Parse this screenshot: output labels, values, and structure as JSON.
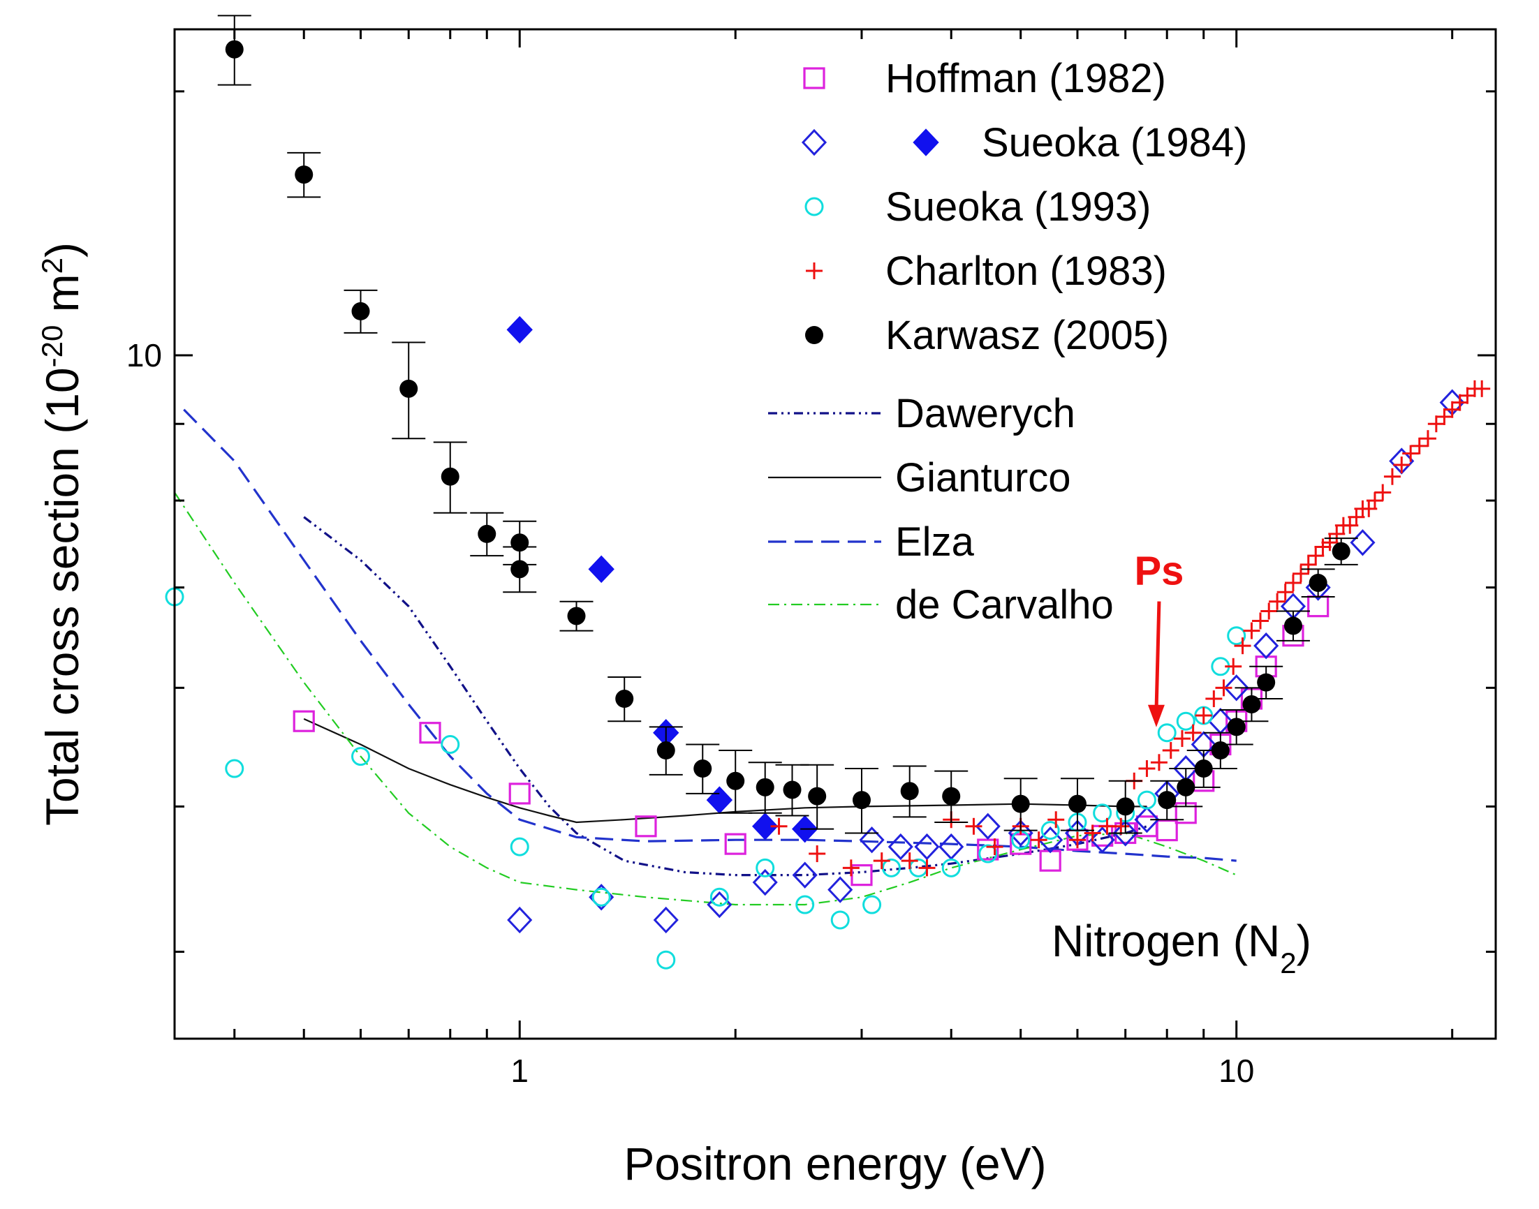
{
  "chart_data": {
    "type": "scatter",
    "title": "",
    "xlabel": "Positron energy (eV)",
    "ylabel": {
      "main": "Total cross section (10",
      "exp": "-20",
      "unit": " m",
      "unit_exp": "2",
      "close": ")"
    },
    "xscale": "log",
    "yscale": "log",
    "xlim": [
      0.33,
      23
    ],
    "ylim": [
      3.5,
      16.5
    ],
    "x_tick_labels": [
      {
        "value": 1,
        "label": "1"
      },
      {
        "value": 10,
        "label": "10"
      }
    ],
    "y_tick_labels": [
      {
        "value": 10,
        "label": "10"
      }
    ],
    "x_ticks_minor": [
      0.4,
      0.5,
      0.6,
      0.7,
      0.8,
      0.9,
      2,
      3,
      4,
      5,
      6,
      7,
      8,
      9,
      20
    ],
    "y_ticks_minor": [
      4,
      5,
      6,
      7,
      8,
      9,
      15
    ],
    "grid": false,
    "legend_position": "top-right",
    "annotation": {
      "text": "Nitrogen (N",
      "sub": "2",
      "close": ")"
    },
    "ps_marker": {
      "label": "Ps",
      "x": 7.8,
      "y_from": 7.0,
      "y_to": 5.6,
      "color": "#ee1111"
    },
    "series": [
      {
        "name": "Hoffman (1982)",
        "marker": "open-square",
        "color": "#dd22dd",
        "x": [
          0.5,
          0.75,
          1.0,
          1.5,
          2.0,
          3.0,
          4.5,
          5.0,
          5.5,
          6.0,
          6.5,
          7.0,
          7.5,
          8.0,
          8.5,
          9.0,
          9.5,
          10.0,
          10.5,
          11.0,
          12.0,
          13.0
        ],
        "y": [
          5.7,
          5.6,
          5.1,
          4.85,
          4.72,
          4.5,
          4.68,
          4.72,
          4.6,
          4.75,
          4.78,
          4.8,
          4.85,
          4.82,
          4.95,
          5.2,
          5.5,
          5.7,
          5.9,
          6.2,
          6.5,
          6.8
        ]
      },
      {
        "name": "Sueoka (1984)",
        "marker": "open-diamond",
        "color": "#2222dd",
        "x": [
          1.0,
          1.3,
          1.6,
          1.9,
          2.2,
          2.5,
          2.8,
          3.1,
          3.4,
          3.7,
          4.0,
          4.5,
          5.0,
          5.5,
          6.0,
          6.5,
          7.0,
          7.5,
          8.0,
          8.5,
          9.0,
          9.5,
          10.0,
          11.0,
          12.0,
          13.0,
          15.0,
          17.0,
          20.0
        ],
        "y": [
          4.2,
          4.35,
          4.2,
          4.3,
          4.45,
          4.5,
          4.4,
          4.75,
          4.7,
          4.7,
          4.7,
          4.85,
          4.8,
          4.75,
          4.8,
          4.75,
          4.8,
          4.9,
          5.1,
          5.3,
          5.5,
          5.7,
          6.0,
          6.4,
          6.8,
          7.0,
          7.5,
          8.5,
          9.3
        ]
      },
      {
        "name": "Sueoka (1984) filled",
        "marker": "filled-diamond",
        "color": "#1111ee",
        "x": [
          1.0,
          1.3,
          1.6,
          1.9,
          2.2,
          2.5
        ],
        "y": [
          10.4,
          7.2,
          5.6,
          5.05,
          4.85,
          4.83
        ]
      },
      {
        "name": "Sueoka (1993)",
        "marker": "open-circle",
        "color": "#11dddd",
        "x": [
          0.33,
          0.4,
          0.6,
          0.8,
          1.0,
          1.3,
          1.6,
          1.9,
          2.2,
          2.5,
          2.8,
          3.1,
          3.3,
          3.6,
          4.0,
          4.5,
          5.0,
          5.5,
          6.0,
          6.5,
          7.0,
          7.5,
          8.0,
          8.5,
          9.0,
          9.5,
          10.0
        ],
        "y": [
          6.9,
          5.3,
          5.4,
          5.5,
          4.7,
          4.35,
          3.95,
          4.35,
          4.55,
          4.3,
          4.2,
          4.3,
          4.55,
          4.55,
          4.55,
          4.65,
          4.75,
          4.82,
          4.88,
          4.95,
          4.95,
          5.05,
          5.6,
          5.7,
          5.75,
          6.2,
          6.5
        ]
      },
      {
        "name": "Charlton (1983)",
        "marker": "plus",
        "color": "#ee1111",
        "x": [
          2.3,
          2.6,
          2.9,
          3.2,
          3.5,
          3.7,
          4.0,
          4.3,
          4.6,
          5.0,
          5.3,
          5.6,
          6.0,
          6.3,
          6.6,
          6.9,
          7.2,
          7.5,
          7.8,
          8.1,
          8.4,
          8.7,
          9.0,
          9.3,
          9.6,
          9.9,
          10.2,
          10.5,
          10.8,
          11.1,
          11.4,
          11.7,
          12.0,
          12.3,
          12.6,
          12.9,
          13.2,
          13.5,
          13.8,
          14.1,
          14.4,
          14.7,
          15.0,
          15.3,
          15.6,
          16.0,
          16.5,
          17.0,
          17.5,
          18.0,
          18.5,
          19.0,
          19.5,
          20.0,
          20.5,
          21.0,
          21.5,
          22.0
        ],
        "y": [
          4.85,
          4.65,
          4.55,
          4.6,
          4.6,
          4.55,
          4.9,
          4.85,
          4.7,
          4.85,
          4.75,
          4.9,
          4.75,
          4.8,
          4.85,
          4.85,
          5.2,
          5.3,
          5.35,
          5.45,
          5.55,
          5.6,
          5.75,
          5.9,
          6.0,
          6.2,
          6.4,
          6.55,
          6.65,
          6.75,
          6.85,
          6.95,
          7.05,
          7.15,
          7.25,
          7.35,
          7.45,
          7.5,
          7.6,
          7.7,
          7.7,
          7.8,
          7.9,
          7.9,
          8.0,
          8.1,
          8.3,
          8.45,
          8.6,
          8.7,
          8.8,
          9.0,
          9.1,
          9.2,
          9.3,
          9.4,
          9.5,
          9.5
        ]
      },
      {
        "name": "Karwasz (2005)",
        "marker": "filled-circle",
        "color": "#000000",
        "x": [
          0.4,
          0.5,
          0.6,
          0.7,
          0.8,
          0.9,
          1.0,
          1.0,
          1.2,
          1.4,
          1.6,
          1.8,
          2.0,
          2.2,
          2.4,
          2.6,
          3.0,
          3.5,
          4.0,
          5.0,
          6.0,
          7.0,
          8.0,
          8.5,
          9.0,
          9.5,
          10.0,
          10.5,
          11.0,
          12.0,
          13.0,
          14.0
        ],
        "y": [
          16.0,
          13.2,
          10.7,
          9.5,
          8.3,
          7.6,
          7.5,
          7.2,
          6.7,
          5.9,
          5.45,
          5.3,
          5.2,
          5.15,
          5.13,
          5.08,
          5.05,
          5.12,
          5.08,
          5.02,
          5.02,
          5.0,
          5.05,
          5.15,
          5.3,
          5.45,
          5.65,
          5.85,
          6.05,
          6.6,
          7.05,
          7.4
        ],
        "yerr": [
          0.85,
          0.45,
          0.35,
          0.7,
          0.45,
          0.25,
          0.25,
          0.25,
          0.15,
          0.2,
          0.2,
          0.2,
          0.25,
          0.2,
          0.2,
          0.25,
          0.25,
          0.2,
          0.2,
          0.2,
          0.2,
          0.2,
          0.15,
          0.15,
          0.15,
          0.15,
          0.15,
          0.15,
          0.15,
          0.15,
          0.15,
          0.15
        ]
      }
    ],
    "lines": [
      {
        "name": "Dawerych",
        "style": "dash-dot-dot",
        "color": "#111188",
        "x": [
          0.5,
          0.6,
          0.7,
          0.8,
          0.9,
          1.0,
          1.1,
          1.2,
          1.4,
          1.7,
          2.0,
          2.5,
          3.0,
          3.5,
          4.0,
          5.0,
          6.0,
          7.0,
          7.5
        ],
        "y": [
          7.8,
          7.3,
          6.8,
          6.2,
          5.7,
          5.3,
          5.0,
          4.8,
          4.6,
          4.52,
          4.5,
          4.5,
          4.52,
          4.55,
          4.58,
          4.65,
          4.72,
          4.8,
          4.85
        ]
      },
      {
        "name": "Gianturco",
        "style": "solid",
        "color": "#111111",
        "x": [
          0.5,
          0.6,
          0.7,
          0.8,
          0.9,
          1.0,
          1.1,
          1.2,
          1.4,
          1.7,
          2.0,
          2.5,
          3.0,
          4.0,
          5.0,
          6.0,
          7.0,
          7.5
        ],
        "y": [
          5.72,
          5.5,
          5.3,
          5.17,
          5.07,
          4.99,
          4.93,
          4.88,
          4.9,
          4.93,
          4.96,
          4.99,
          5.0,
          5.01,
          5.02,
          5.01,
          5.0,
          5.0
        ]
      },
      {
        "name": "Elza",
        "style": "dashed",
        "color": "#2233cc",
        "x": [
          0.34,
          0.4,
          0.5,
          0.6,
          0.7,
          0.8,
          0.9,
          1.0,
          1.2,
          1.5,
          2.0,
          2.5,
          3.0,
          4.0,
          5.0,
          6.0,
          7.0,
          8.0,
          9.0,
          10.0
        ],
        "y": [
          9.2,
          8.5,
          7.3,
          6.45,
          5.85,
          5.4,
          5.1,
          4.9,
          4.77,
          4.74,
          4.75,
          4.75,
          4.74,
          4.72,
          4.7,
          4.67,
          4.65,
          4.63,
          4.62,
          4.6
        ]
      },
      {
        "name": "de Carvalho",
        "style": "dash-dot",
        "color": "#22cc22",
        "x": [
          0.33,
          0.4,
          0.5,
          0.6,
          0.7,
          0.8,
          0.9,
          1.0,
          1.2,
          1.5,
          2.0,
          2.5,
          3.0,
          3.5,
          4.0,
          5.0,
          6.0,
          7.0,
          8.0,
          9.0,
          10.0
        ],
        "y": [
          8.1,
          7.05,
          6.05,
          5.4,
          4.95,
          4.7,
          4.55,
          4.45,
          4.4,
          4.35,
          4.3,
          4.3,
          4.35,
          4.45,
          4.55,
          4.68,
          4.78,
          4.8,
          4.7,
          4.6,
          4.5
        ]
      }
    ],
    "legend": [
      {
        "label": "Hoffman (1982)",
        "marker": "open-square",
        "color": "#dd22dd"
      },
      {
        "label": "Sueoka (1984)",
        "marker": "diamond-pair",
        "color": "#2222dd",
        "color2": "#1111ee"
      },
      {
        "label": "Sueoka (1993)",
        "marker": "open-circle",
        "color": "#11dddd"
      },
      {
        "label": "Charlton (1983)",
        "marker": "plus",
        "color": "#ee1111"
      },
      {
        "label": "Karwasz (2005)",
        "marker": "filled-circle",
        "color": "#000000"
      },
      {
        "label": "Dawerych",
        "marker": "line-dash-dot-dot",
        "color": "#111188"
      },
      {
        "label": "Gianturco",
        "marker": "line-solid",
        "color": "#111111"
      },
      {
        "label": "Elza",
        "marker": "line-dashed",
        "color": "#2233cc"
      },
      {
        "label": "de Carvalho",
        "marker": "line-dash-dot",
        "color": "#22cc22"
      }
    ]
  }
}
